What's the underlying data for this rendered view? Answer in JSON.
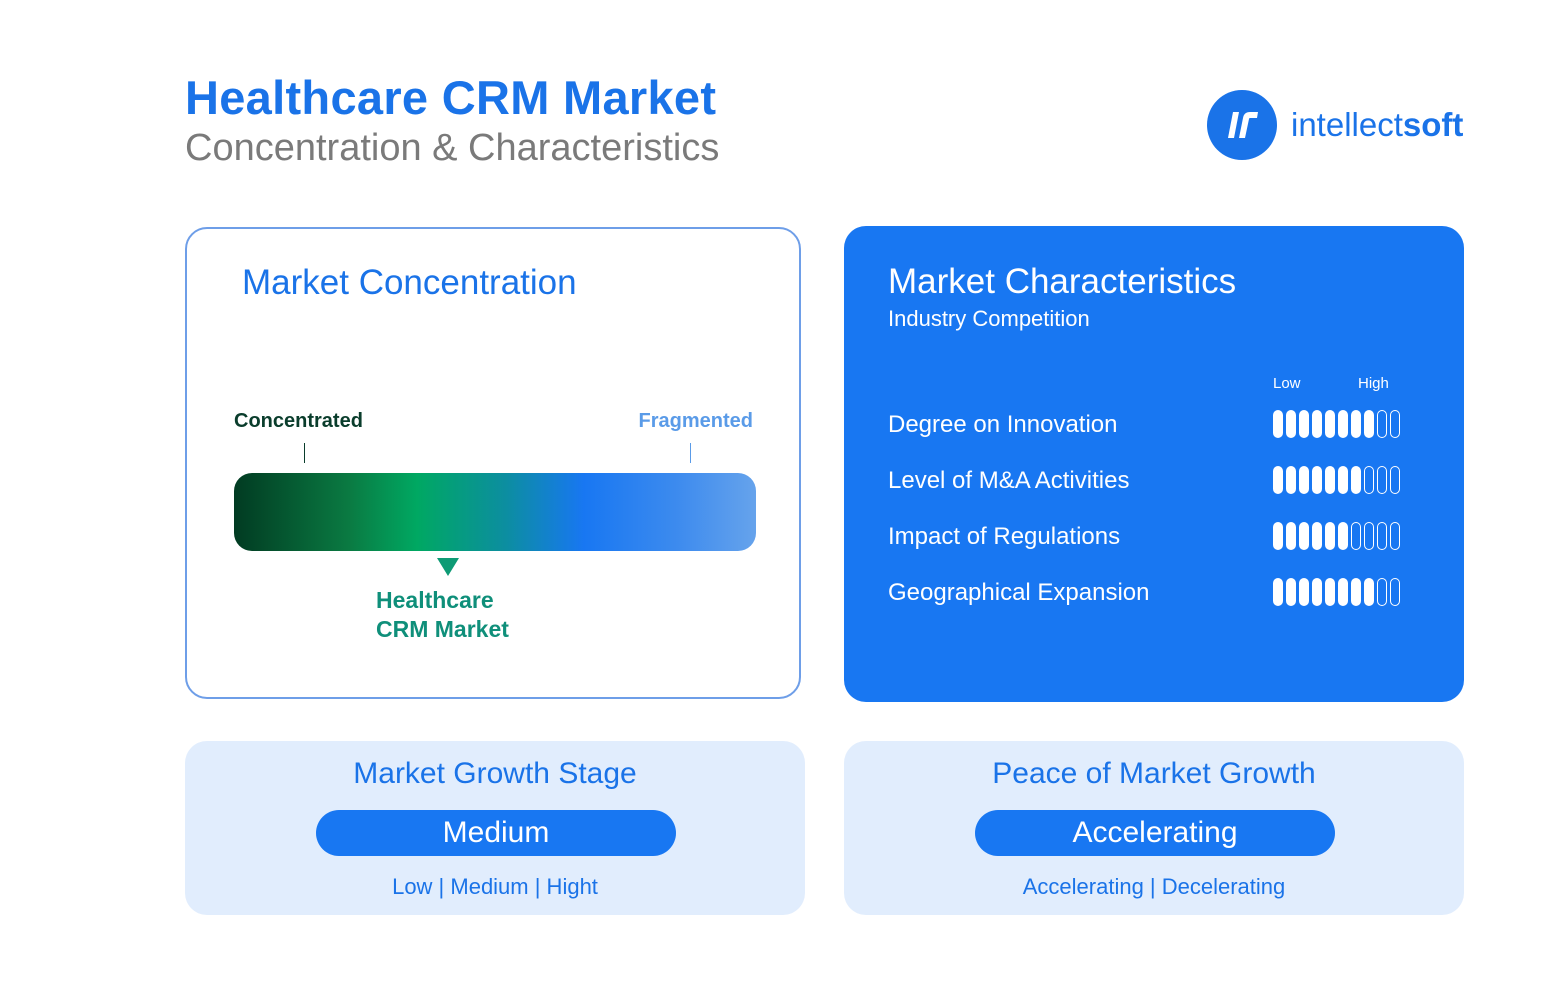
{
  "header": {
    "title": "Healthcare CRM Market",
    "subtitle": "Concentration & Characteristics"
  },
  "logo": {
    "icon": "intellectsoft-logo-mark",
    "text_light": "intellect",
    "text_bold": "soft"
  },
  "market_concentration": {
    "title": "Market Concentration",
    "left_label": "Concentrated",
    "right_label": "Fragmented",
    "marker_label_line1": "Healthcare",
    "marker_label_line2": "CRM Market",
    "marker_position_fraction": 0.41
  },
  "market_characteristics": {
    "title": "Market Characteristics",
    "subtitle": "Industry Competition",
    "scale_low": "Low",
    "scale_high": "High",
    "scale_max": 10,
    "rows": [
      {
        "label": "Degree on Innovation",
        "level": 8
      },
      {
        "label": "Level of M&A Activities",
        "level": 7
      },
      {
        "label": "Impact of Regulations",
        "level": 6
      },
      {
        "label": "Geographical Expansion",
        "level": 8
      }
    ]
  },
  "growth_stage": {
    "title": "Market Growth Stage",
    "value": "Medium",
    "options": "Low | Medium | Hight"
  },
  "growth_pace": {
    "title": "Peace of Market Growth",
    "value": "Accelerating",
    "options": "Accelerating | Decelerating"
  },
  "colors": {
    "brand_blue": "#1877f2",
    "marker_green": "#0e9b75",
    "dark_green": "#0a3d2c"
  }
}
